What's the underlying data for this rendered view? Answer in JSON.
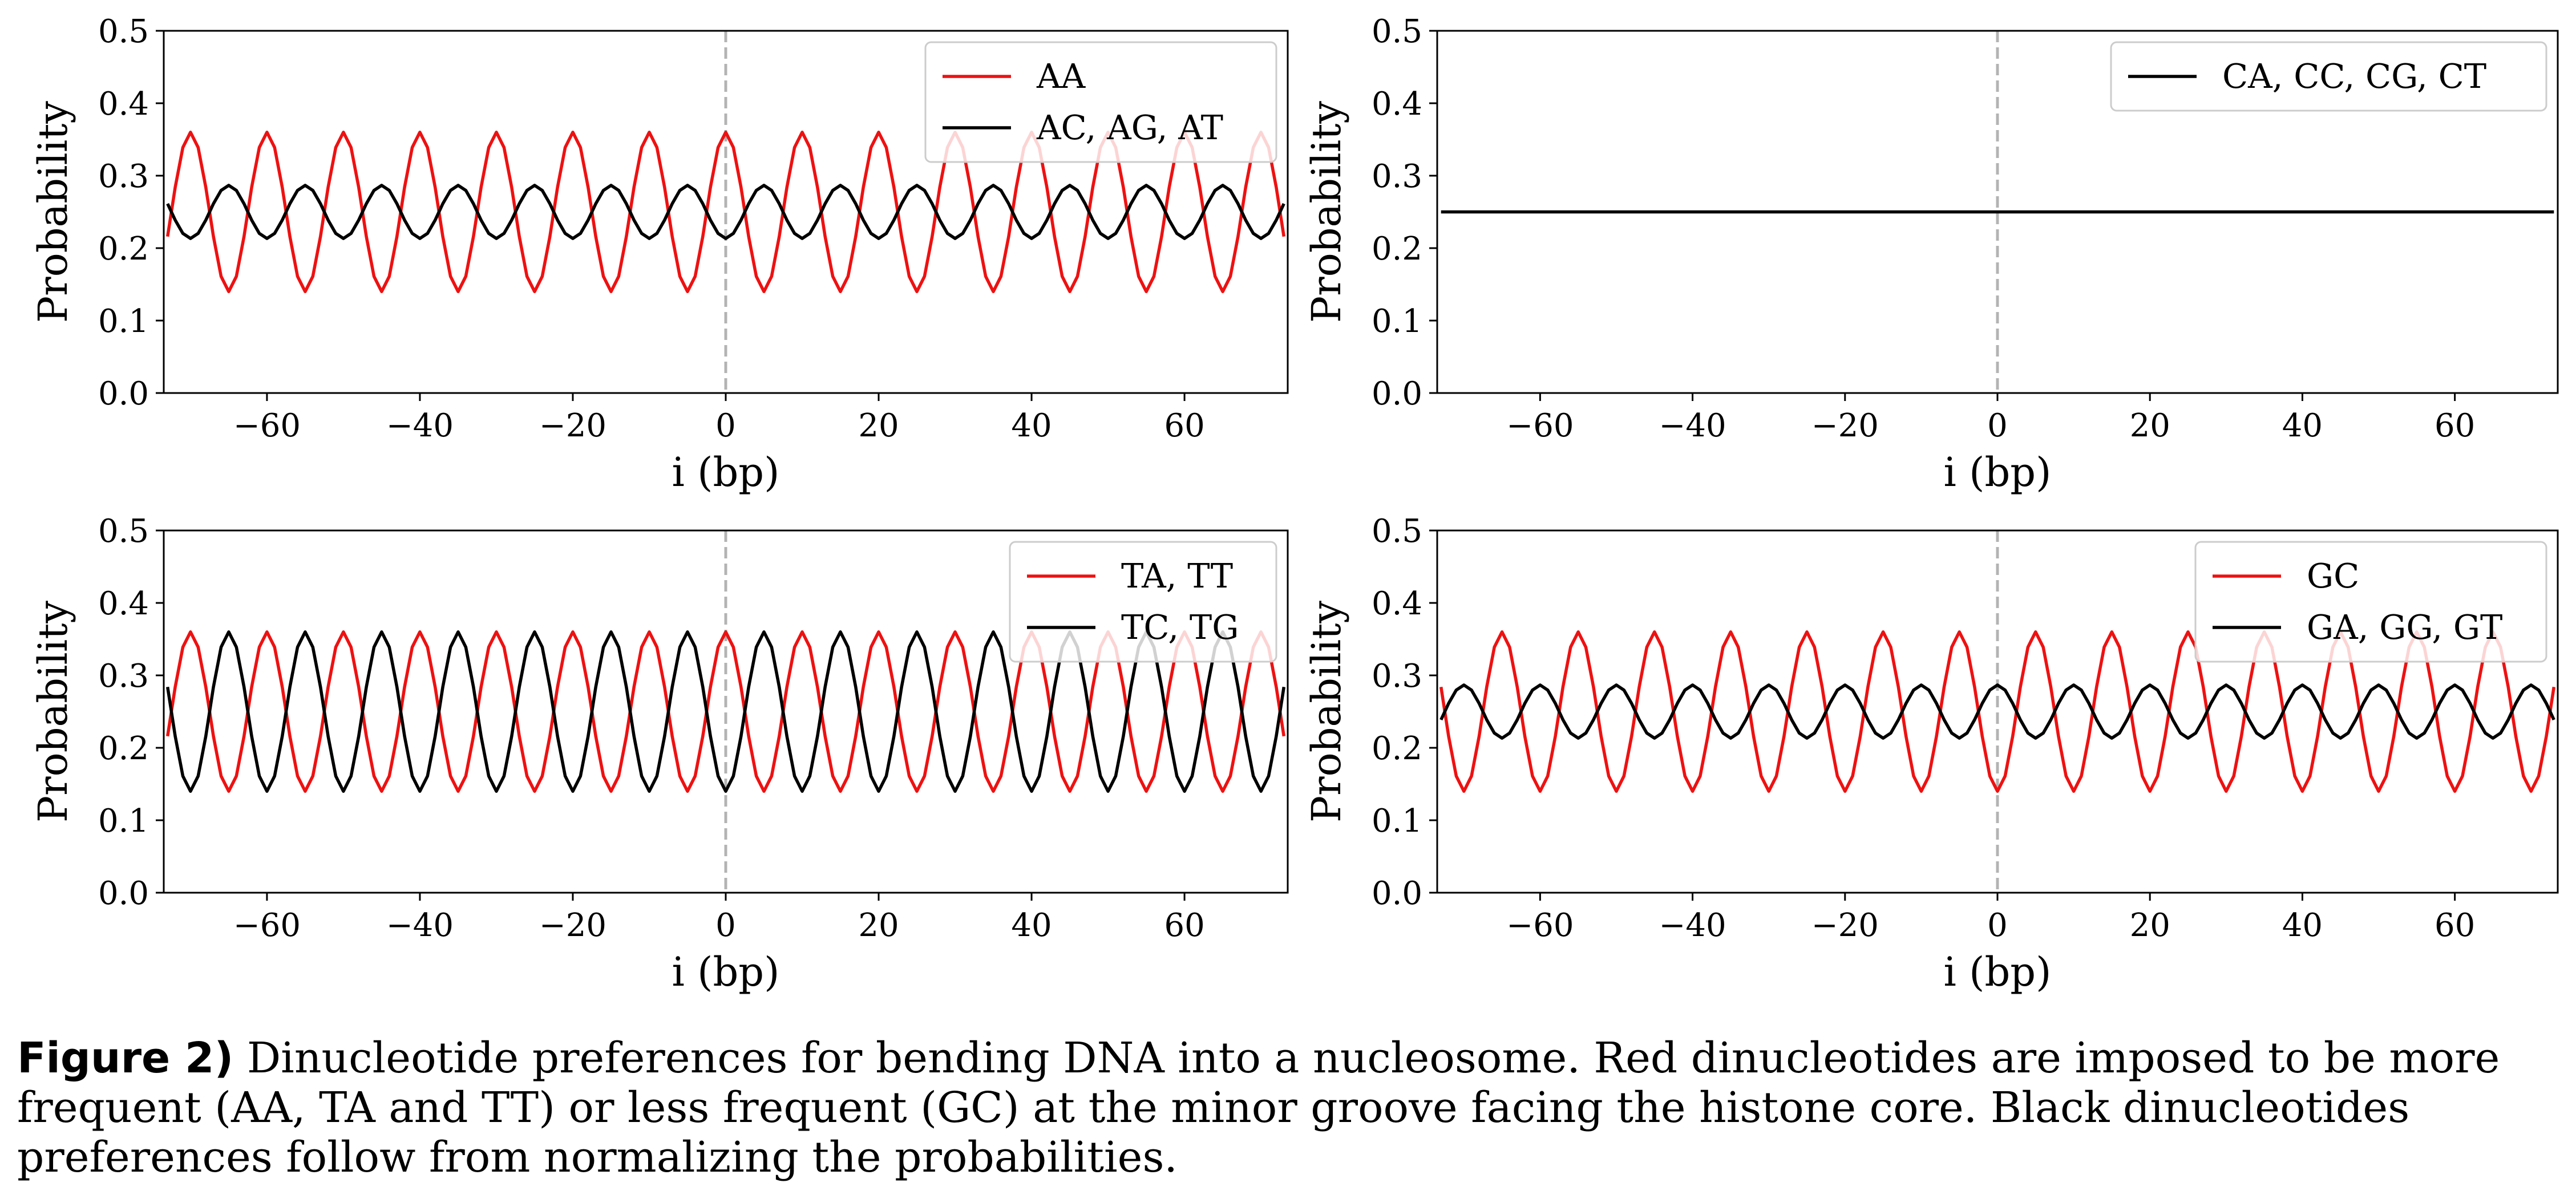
{
  "chart_data": [
    {
      "type": "line",
      "panel": "top-left",
      "xlabel": "i (bp)",
      "ylabel": "Probability",
      "xlim": [
        -73.5,
        73.5
      ],
      "ylim": [
        0.0,
        0.5
      ],
      "xticks": [
        -60,
        -40,
        -20,
        0,
        20,
        40,
        60
      ],
      "yticks": [
        0.0,
        0.1,
        0.2,
        0.3,
        0.4,
        0.5
      ],
      "vline_x": 0,
      "legend_position": "upper right",
      "series": [
        {
          "name": "AA",
          "color": "#ee1111",
          "function": "cos",
          "mean": 0.25,
          "amplitude": 0.11,
          "period_bp": 10,
          "phase_x": 0,
          "x_range": [
            -73,
            73
          ],
          "step": 1
        },
        {
          "name": "AC, AG, AT",
          "color": "#000000",
          "function": "cos",
          "mean": 0.25,
          "amplitude": -0.0367,
          "period_bp": 10,
          "phase_x": 0,
          "x_range": [
            -73,
            73
          ],
          "step": 1
        }
      ]
    },
    {
      "type": "line",
      "panel": "top-right",
      "xlabel": "i (bp)",
      "ylabel": "Probability",
      "xlim": [
        -73.5,
        73.5
      ],
      "ylim": [
        0.0,
        0.5
      ],
      "xticks": [
        -60,
        -40,
        -20,
        0,
        20,
        40,
        60
      ],
      "yticks": [
        0.0,
        0.1,
        0.2,
        0.3,
        0.4,
        0.5
      ],
      "vline_x": 0,
      "legend_position": "upper right",
      "series": [
        {
          "name": "CA, CC, CG, CT",
          "color": "#000000",
          "function": "cos",
          "mean": 0.25,
          "amplitude": 0.0,
          "period_bp": 10,
          "phase_x": 0,
          "x_range": [
            -73,
            73
          ],
          "step": 1
        }
      ]
    },
    {
      "type": "line",
      "panel": "bottom-left",
      "xlabel": "i (bp)",
      "ylabel": "Probability",
      "xlim": [
        -73.5,
        73.5
      ],
      "ylim": [
        0.0,
        0.5
      ],
      "xticks": [
        -60,
        -40,
        -20,
        0,
        20,
        40,
        60
      ],
      "yticks": [
        0.0,
        0.1,
        0.2,
        0.3,
        0.4,
        0.5
      ],
      "vline_x": 0,
      "legend_position": "upper right",
      "series": [
        {
          "name": "TA, TT",
          "color": "#ee1111",
          "function": "cos",
          "mean": 0.25,
          "amplitude": 0.11,
          "period_bp": 10,
          "phase_x": 0,
          "x_range": [
            -73,
            73
          ],
          "step": 1
        },
        {
          "name": "TC, TG",
          "color": "#000000",
          "function": "cos",
          "mean": 0.25,
          "amplitude": -0.11,
          "period_bp": 10,
          "phase_x": 0,
          "x_range": [
            -73,
            73
          ],
          "step": 1
        }
      ]
    },
    {
      "type": "line",
      "panel": "bottom-right",
      "xlabel": "i (bp)",
      "ylabel": "Probability",
      "xlim": [
        -73.5,
        73.5
      ],
      "ylim": [
        0.0,
        0.5
      ],
      "xticks": [
        -60,
        -40,
        -20,
        0,
        20,
        40,
        60
      ],
      "yticks": [
        0.0,
        0.1,
        0.2,
        0.3,
        0.4,
        0.5
      ],
      "vline_x": 0,
      "legend_position": "upper right",
      "series": [
        {
          "name": "GC",
          "color": "#ee1111",
          "function": "cos",
          "mean": 0.25,
          "amplitude": -0.11,
          "period_bp": 10,
          "phase_x": 0,
          "x_range": [
            -73,
            73
          ],
          "step": 1
        },
        {
          "name": "GA, GG, GT",
          "color": "#000000",
          "function": "cos",
          "mean": 0.25,
          "amplitude": 0.0367,
          "period_bp": 10,
          "phase_x": 0,
          "x_range": [
            -73,
            73
          ],
          "step": 1
        }
      ]
    }
  ],
  "caption": {
    "label": "Figure 2)",
    "text": " Dinucleotide preferences for bending DNA into a nucleosome. Red dinucleotides are imposed to be more frequent (AA, TA and TT) or less frequent (GC) at the minor groove facing the histone core. Black dinucleotides preferences follow from normalizing the probabilities."
  }
}
